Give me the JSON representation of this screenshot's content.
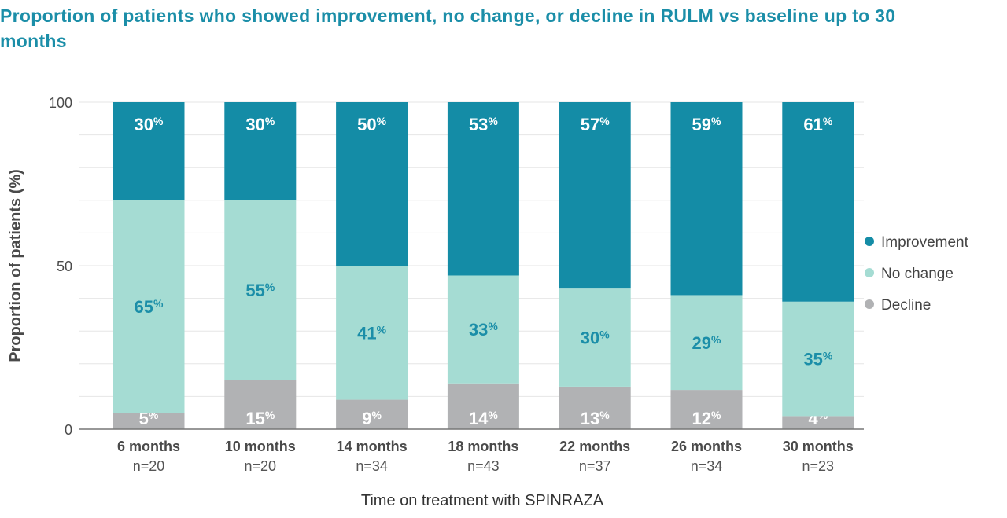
{
  "title": "Proportion of patients who showed improvement, no change, or decline in RULM vs baseline up to 30 months",
  "chart_data": {
    "type": "bar",
    "stacked": true,
    "title": "Proportion of patients who showed improvement, no change, or decline in RULM vs baseline up to 30 months",
    "xlabel": "Time on treatment with SPINRAZA",
    "ylabel": "Proportion of patients (%)",
    "ylim": [
      0,
      100
    ],
    "yticks": [
      0,
      50,
      100
    ],
    "grid": true,
    "legend_position": "right",
    "categories": [
      "6 months",
      "10 months",
      "14 months",
      "18 months",
      "22 months",
      "26 months",
      "30 months"
    ],
    "n_labels": [
      "n=20",
      "n=20",
      "n=34",
      "n=43",
      "n=37",
      "n=34",
      "n=23"
    ],
    "percent_symbol": "%",
    "series": [
      {
        "name": "Decline",
        "color": "#b1b2b4",
        "label_color": "#ffffff",
        "values": [
          5,
          15,
          9,
          14,
          13,
          12,
          4
        ]
      },
      {
        "name": "No change",
        "color": "#a5dcd3",
        "label_color": "#1b8ea8",
        "values": [
          65,
          55,
          41,
          33,
          30,
          29,
          35
        ]
      },
      {
        "name": "Improvement",
        "color": "#148ca6",
        "label_color": "#ffffff",
        "values": [
          30,
          30,
          50,
          53,
          57,
          59,
          61
        ]
      }
    ],
    "legend_order": [
      "Improvement",
      "No change",
      "Decline"
    ]
  }
}
